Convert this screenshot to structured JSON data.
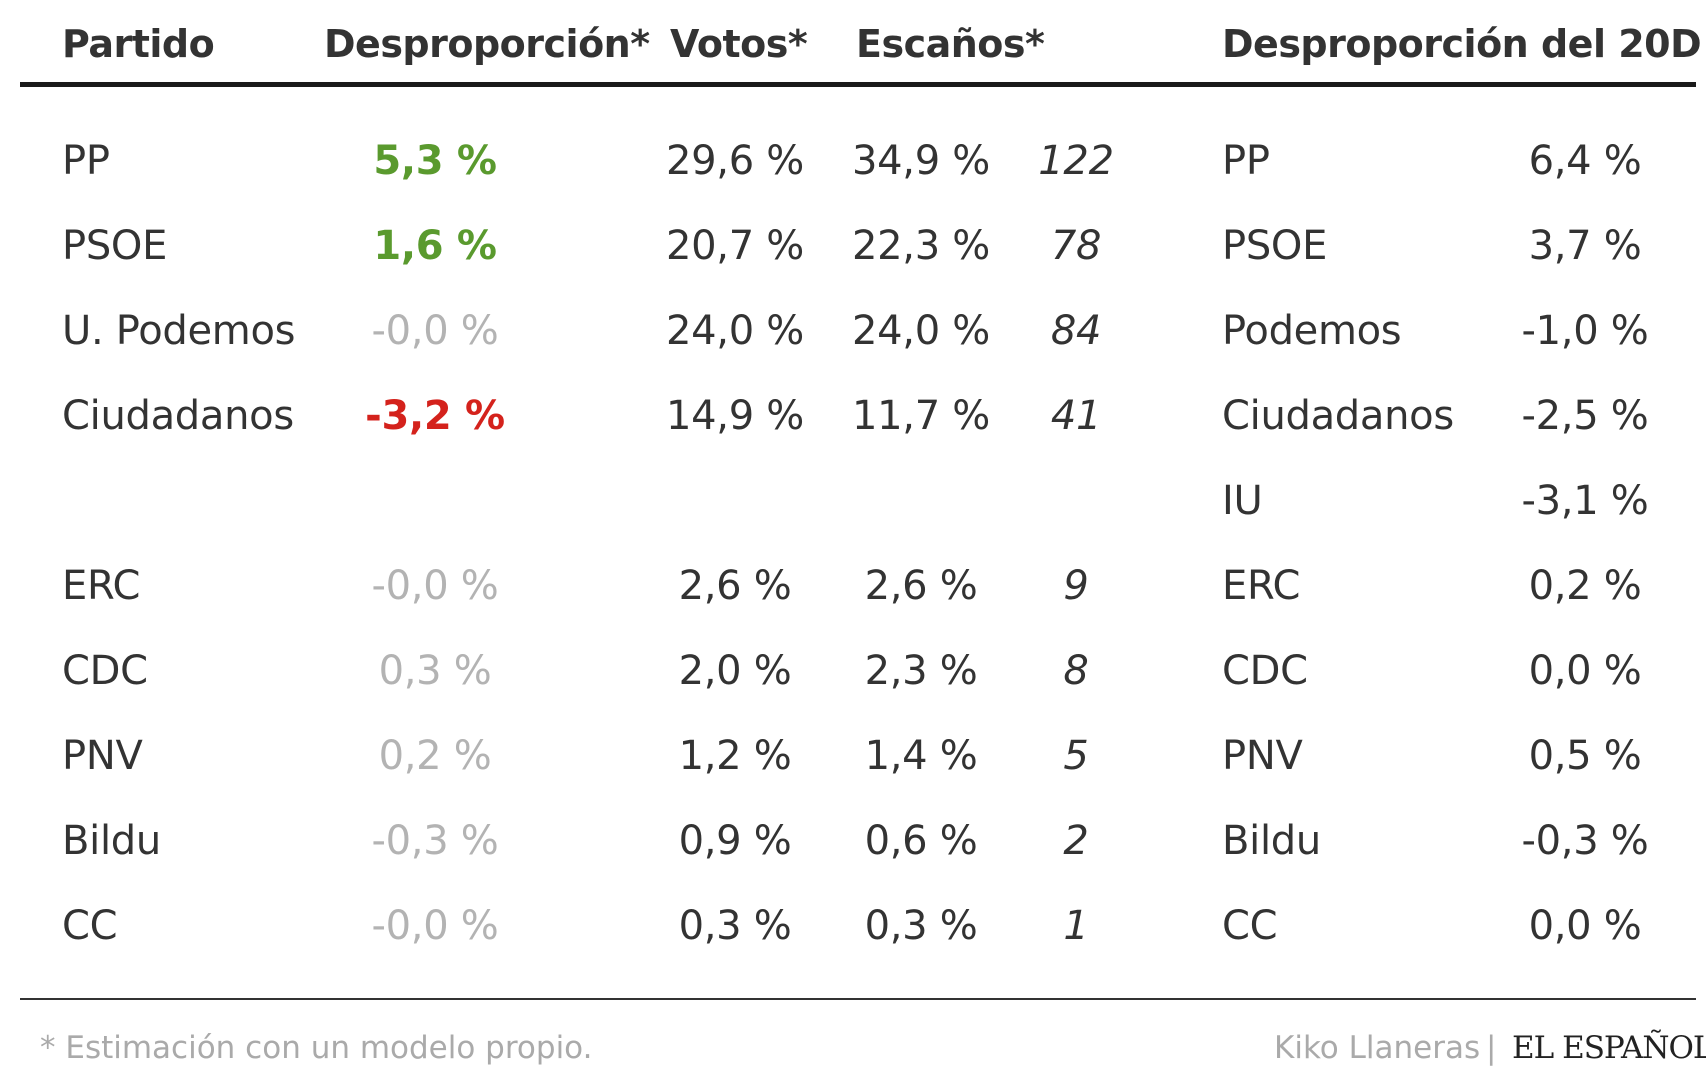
{
  "headers": {
    "partido": "Partido",
    "desproporcion": "Desproporción*",
    "votos": "Votos*",
    "escanos": "Escaños*",
    "desproporcion_20d": "Desproporción del 20D"
  },
  "rows": [
    {
      "partido": "PP",
      "desproporcion": "5,3 %",
      "tone": "positive",
      "votos": "29,6 %",
      "escanos_pct": "34,9 %",
      "escanos": "122"
    },
    {
      "partido": "PSOE",
      "desproporcion": "1,6 %",
      "tone": "positive",
      "votos": "20,7 %",
      "escanos_pct": "22,3 %",
      "escanos": "78"
    },
    {
      "partido": "U. Podemos",
      "desproporcion": "-0,0 %",
      "tone": "neutral",
      "votos": "24,0 %",
      "escanos_pct": "24,0 %",
      "escanos": "84"
    },
    {
      "partido": "Ciudadanos",
      "desproporcion": "-3,2 %",
      "tone": "negative",
      "votos": "14,9 %",
      "escanos_pct": "11,7 %",
      "escanos": "41"
    },
    {
      "partido": "ERC",
      "desproporcion": "-0,0 %",
      "tone": "neutral",
      "votos": "2,6 %",
      "escanos_pct": "2,6 %",
      "escanos": "9"
    },
    {
      "partido": "CDC",
      "desproporcion": "0,3 %",
      "tone": "neutral",
      "votos": "2,0 %",
      "escanos_pct": "2,3 %",
      "escanos": "8"
    },
    {
      "partido": "PNV",
      "desproporcion": "0,2 %",
      "tone": "neutral",
      "votos": "1,2 %",
      "escanos_pct": "1,4 %",
      "escanos": "5"
    },
    {
      "partido": "Bildu",
      "desproporcion": "-0,3 %",
      "tone": "neutral",
      "votos": "0,9 %",
      "escanos_pct": "0,6 %",
      "escanos": "2"
    },
    {
      "partido": "CC",
      "desproporcion": "-0,0 %",
      "tone": "neutral",
      "votos": "0,3 %",
      "escanos_pct": "0,3 %",
      "escanos": "1"
    }
  ],
  "rows_20d": [
    {
      "partido": "PP",
      "desproporcion": "6,4 %"
    },
    {
      "partido": "PSOE",
      "desproporcion": "3,7 %"
    },
    {
      "partido": "Podemos",
      "desproporcion": "-1,0 %"
    },
    {
      "partido": "Ciudadanos",
      "desproporcion": "-2,5 %"
    },
    {
      "partido": "IU",
      "desproporcion": "-3,1 %"
    },
    {
      "partido": "ERC",
      "desproporcion": "0,2 %"
    },
    {
      "partido": "CDC",
      "desproporcion": "0,0 %"
    },
    {
      "partido": "PNV",
      "desproporcion": "0,5 %"
    },
    {
      "partido": "Bildu",
      "desproporcion": "-0,3 %"
    },
    {
      "partido": "CC",
      "desproporcion": "0,0 %"
    }
  ],
  "colors": {
    "positive": "#5a9a2e",
    "negative": "#d4221c",
    "neutral": "#b3b3b3",
    "text": "#333333"
  },
  "footer": {
    "note": "* Estimación con un modelo propio.",
    "author": "Kiko Llaneras",
    "separator": "|",
    "brand": "EL ESPAÑOL"
  }
}
